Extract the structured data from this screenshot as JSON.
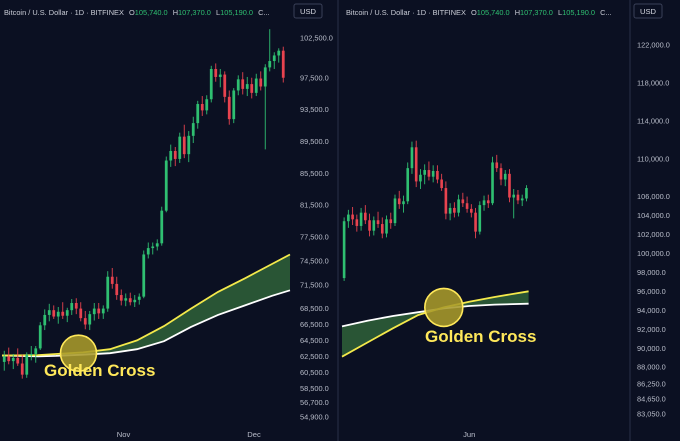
{
  "colors": {
    "background": "#0b1022",
    "up": "#2fbf71",
    "down": "#e8434f",
    "ma_fast": "#f4e94b",
    "ma_slow": "#ffffff",
    "cloud": "#2b5a37",
    "cross_marker": "#a89a2a",
    "annotation": "#ffe85a"
  },
  "chart_data": [
    {
      "type": "candlestick",
      "title": "Bitcoin / U.S. Dollar · 1D · BITFINEX",
      "ohlc_label": {
        "o_prefix": "O",
        "o": "105,740.0",
        "h_prefix": "H",
        "h": "107,370.0",
        "l_prefix": "L",
        "l": "105,190.0",
        "c_prefix": "C..."
      },
      "currency": "USD",
      "ylim": [
        54000,
        104000
      ],
      "yticks": [
        102500,
        97500,
        93500,
        89500,
        85500,
        81500,
        77500,
        74500,
        71500,
        68500,
        66500,
        64500,
        62500,
        60500,
        58500,
        56700,
        54900
      ],
      "ytick_labels": [
        "102,500.0",
        "97,500.0",
        "93,500.0",
        "89,500.0",
        "85,500.0",
        "81,500.0",
        "77,500.0",
        "74,500.0",
        "71,500.0",
        "68,500.0",
        "66,500.0",
        "64,500.0",
        "62,500.0",
        "60,500.0",
        "58,500.0",
        "56,700.0",
        "54,900.0"
      ],
      "x_range": [
        0,
        64
      ],
      "x_ticks": [
        {
          "i": 27,
          "label": "Nov"
        },
        {
          "i": 56,
          "label": "Dec"
        }
      ],
      "candles": [
        {
          "o": 61800,
          "h": 63200,
          "l": 60700,
          "c": 62500
        },
        {
          "o": 62500,
          "h": 63600,
          "l": 61500,
          "c": 61900
        },
        {
          "o": 61900,
          "h": 62800,
          "l": 60900,
          "c": 62300
        },
        {
          "o": 62300,
          "h": 63500,
          "l": 61300,
          "c": 61600
        },
        {
          "o": 61600,
          "h": 62700,
          "l": 59700,
          "c": 60200
        },
        {
          "o": 60200,
          "h": 63000,
          "l": 59800,
          "c": 62700
        },
        {
          "o": 62700,
          "h": 63800,
          "l": 62000,
          "c": 62800
        },
        {
          "o": 62800,
          "h": 63800,
          "l": 61700,
          "c": 63500
        },
        {
          "o": 63500,
          "h": 66800,
          "l": 63300,
          "c": 66400
        },
        {
          "o": 66400,
          "h": 68400,
          "l": 65800,
          "c": 67700
        },
        {
          "o": 67700,
          "h": 69100,
          "l": 66900,
          "c": 68300
        },
        {
          "o": 68300,
          "h": 68900,
          "l": 67200,
          "c": 67500
        },
        {
          "o": 67500,
          "h": 68700,
          "l": 66600,
          "c": 68100
        },
        {
          "o": 68100,
          "h": 69300,
          "l": 67200,
          "c": 67600
        },
        {
          "o": 67600,
          "h": 68600,
          "l": 66800,
          "c": 68300
        },
        {
          "o": 68300,
          "h": 69700,
          "l": 67700,
          "c": 69200
        },
        {
          "o": 69200,
          "h": 69800,
          "l": 67800,
          "c": 68500
        },
        {
          "o": 68500,
          "h": 69300,
          "l": 66900,
          "c": 67300
        },
        {
          "o": 67300,
          "h": 68200,
          "l": 65900,
          "c": 66500
        },
        {
          "o": 66500,
          "h": 68200,
          "l": 65800,
          "c": 67800
        },
        {
          "o": 67800,
          "h": 69200,
          "l": 67000,
          "c": 68500
        },
        {
          "o": 68500,
          "h": 69200,
          "l": 67200,
          "c": 67900
        },
        {
          "o": 67900,
          "h": 68900,
          "l": 67200,
          "c": 68500
        },
        {
          "o": 68500,
          "h": 73200,
          "l": 68100,
          "c": 72500
        },
        {
          "o": 72500,
          "h": 73600,
          "l": 71000,
          "c": 71600
        },
        {
          "o": 71600,
          "h": 72500,
          "l": 69600,
          "c": 70200
        },
        {
          "o": 70200,
          "h": 70900,
          "l": 68900,
          "c": 69500
        },
        {
          "o": 69500,
          "h": 70400,
          "l": 68800,
          "c": 69800
        },
        {
          "o": 69800,
          "h": 70500,
          "l": 68900,
          "c": 69300
        },
        {
          "o": 69300,
          "h": 70200,
          "l": 68700,
          "c": 69600
        },
        {
          "o": 69600,
          "h": 70400,
          "l": 69000,
          "c": 70000
        },
        {
          "o": 70000,
          "h": 75800,
          "l": 69800,
          "c": 75300
        },
        {
          "o": 75300,
          "h": 76800,
          "l": 74800,
          "c": 76100
        },
        {
          "o": 76100,
          "h": 76800,
          "l": 75300,
          "c": 76300
        },
        {
          "o": 76300,
          "h": 77200,
          "l": 75800,
          "c": 76700
        },
        {
          "o": 76700,
          "h": 81300,
          "l": 76400,
          "c": 80800
        },
        {
          "o": 80800,
          "h": 87600,
          "l": 80600,
          "c": 87100
        },
        {
          "o": 87100,
          "h": 89100,
          "l": 86300,
          "c": 88300
        },
        {
          "o": 88300,
          "h": 88800,
          "l": 86400,
          "c": 87300
        },
        {
          "o": 87300,
          "h": 90600,
          "l": 86800,
          "c": 90100
        },
        {
          "o": 90100,
          "h": 91600,
          "l": 87400,
          "c": 87900
        },
        {
          "o": 87900,
          "h": 90800,
          "l": 86900,
          "c": 90200
        },
        {
          "o": 90200,
          "h": 92600,
          "l": 89300,
          "c": 91800
        },
        {
          "o": 91800,
          "h": 94600,
          "l": 91100,
          "c": 94200
        },
        {
          "o": 94200,
          "h": 95200,
          "l": 92700,
          "c": 93400
        },
        {
          "o": 93400,
          "h": 95300,
          "l": 92900,
          "c": 94800
        },
        {
          "o": 94800,
          "h": 99000,
          "l": 94400,
          "c": 98600
        },
        {
          "o": 98600,
          "h": 99300,
          "l": 97000,
          "c": 97600
        },
        {
          "o": 97600,
          "h": 98600,
          "l": 96300,
          "c": 97900
        },
        {
          "o": 97900,
          "h": 98300,
          "l": 94400,
          "c": 95100
        },
        {
          "o": 95100,
          "h": 95900,
          "l": 91600,
          "c": 92300
        },
        {
          "o": 92300,
          "h": 96200,
          "l": 91800,
          "c": 95900
        },
        {
          "o": 95900,
          "h": 97800,
          "l": 95300,
          "c": 97300
        },
        {
          "o": 97300,
          "h": 98200,
          "l": 95400,
          "c": 96100
        },
        {
          "o": 96100,
          "h": 97600,
          "l": 95200,
          "c": 96700
        },
        {
          "o": 96700,
          "h": 97500,
          "l": 94900,
          "c": 95600
        },
        {
          "o": 95600,
          "h": 98000,
          "l": 95200,
          "c": 97400
        },
        {
          "o": 97400,
          "h": 98300,
          "l": 95900,
          "c": 96400
        },
        {
          "o": 96400,
          "h": 99200,
          "l": 88500,
          "c": 98800
        },
        {
          "o": 98800,
          "h": 103600,
          "l": 98300,
          "c": 99600
        },
        {
          "o": 99600,
          "h": 100700,
          "l": 98600,
          "c": 100300
        },
        {
          "o": 100300,
          "h": 101200,
          "l": 99400,
          "c": 100900
        },
        {
          "o": 100900,
          "h": 101400,
          "l": 96900,
          "c": 97500
        }
      ],
      "ma_fast": {
        "x": [
          0,
          8,
          12,
          18,
          24,
          30,
          36,
          42,
          48,
          54,
          60,
          64
        ],
        "y": [
          62600,
          62650,
          62800,
          63000,
          63400,
          64500,
          66300,
          68500,
          70600,
          72300,
          74100,
          75300
        ]
      },
      "ma_slow": {
        "x": [
          0,
          8,
          12,
          18,
          24,
          30,
          36,
          42,
          48,
          54,
          60,
          64
        ],
        "y": [
          62600,
          62500,
          62550,
          62700,
          62900,
          63400,
          64400,
          66200,
          67700,
          68900,
          70100,
          70800
        ]
      },
      "cross": {
        "x": 17,
        "y": 62900
      },
      "annotation": "Golden Cross"
    },
    {
      "type": "candlestick",
      "title": "Bitcoin / U.S. Dollar · 1D · BITFINEX",
      "ohlc_label": {
        "o_prefix": "O",
        "o": "105,740.0",
        "h_prefix": "H",
        "h": "107,370.0",
        "l_prefix": "L",
        "l": "105,190.0",
        "c_prefix": "C..."
      },
      "currency": "USD",
      "ylim": [
        82000,
        124000
      ],
      "yticks": [
        122000,
        118000,
        114000,
        110000,
        106000,
        104000,
        102000,
        100000,
        98000,
        96000,
        94000,
        92000,
        90000,
        88000,
        86250,
        84650,
        83050
      ],
      "ytick_labels": [
        "122,000.0",
        "118,000.0",
        "114,000.0",
        "110,000.0",
        "106,000.0",
        "104,000.0",
        "102,000.0",
        "100,000.0",
        "98,000.0",
        "96,000.0",
        "94,000.0",
        "92,000.0",
        "90,000.0",
        "88,000.0",
        "86,250.0",
        "84,650.0",
        "83,050.0"
      ],
      "x_range": [
        0,
        50
      ],
      "x_ticks": [
        {
          "i": 30,
          "label": "Jun"
        }
      ],
      "candles": [
        {
          "o": 97400,
          "h": 103800,
          "l": 97100,
          "c": 103400
        },
        {
          "o": 103400,
          "h": 104600,
          "l": 102700,
          "c": 104100
        },
        {
          "o": 104100,
          "h": 104900,
          "l": 103000,
          "c": 103600
        },
        {
          "o": 103600,
          "h": 104100,
          "l": 102300,
          "c": 102900
        },
        {
          "o": 102900,
          "h": 104800,
          "l": 102400,
          "c": 104300
        },
        {
          "o": 104300,
          "h": 105100,
          "l": 103100,
          "c": 103500
        },
        {
          "o": 103500,
          "h": 104200,
          "l": 101800,
          "c": 102400
        },
        {
          "o": 102400,
          "h": 103900,
          "l": 101900,
          "c": 103500
        },
        {
          "o": 103500,
          "h": 104400,
          "l": 102700,
          "c": 103100
        },
        {
          "o": 103100,
          "h": 103800,
          "l": 101600,
          "c": 102100
        },
        {
          "o": 102100,
          "h": 104000,
          "l": 101700,
          "c": 103600
        },
        {
          "o": 103600,
          "h": 104300,
          "l": 102600,
          "c": 103200
        },
        {
          "o": 103200,
          "h": 106200,
          "l": 102900,
          "c": 105800
        },
        {
          "o": 105800,
          "h": 106600,
          "l": 104700,
          "c": 105200
        },
        {
          "o": 105200,
          "h": 106100,
          "l": 104300,
          "c": 105500
        },
        {
          "o": 105500,
          "h": 109600,
          "l": 105200,
          "c": 109000
        },
        {
          "o": 109000,
          "h": 111800,
          "l": 108400,
          "c": 111200
        },
        {
          "o": 111200,
          "h": 111900,
          "l": 107000,
          "c": 107600
        },
        {
          "o": 107600,
          "h": 108900,
          "l": 106800,
          "c": 108300
        },
        {
          "o": 108300,
          "h": 109400,
          "l": 107300,
          "c": 108800
        },
        {
          "o": 108800,
          "h": 109700,
          "l": 107700,
          "c": 108100
        },
        {
          "o": 108100,
          "h": 109300,
          "l": 107500,
          "c": 108700
        },
        {
          "o": 108700,
          "h": 109300,
          "l": 107400,
          "c": 107800
        },
        {
          "o": 107800,
          "h": 108400,
          "l": 106600,
          "c": 106900
        },
        {
          "o": 106900,
          "h": 107600,
          "l": 103600,
          "c": 104200
        },
        {
          "o": 104200,
          "h": 105300,
          "l": 103500,
          "c": 104800
        },
        {
          "o": 104800,
          "h": 105400,
          "l": 103800,
          "c": 104300
        },
        {
          "o": 104300,
          "h": 106200,
          "l": 103900,
          "c": 105700
        },
        {
          "o": 105700,
          "h": 106400,
          "l": 104900,
          "c": 105300
        },
        {
          "o": 105300,
          "h": 106000,
          "l": 104300,
          "c": 104700
        },
        {
          "o": 104700,
          "h": 105200,
          "l": 103800,
          "c": 104300
        },
        {
          "o": 104300,
          "h": 104800,
          "l": 101600,
          "c": 102300
        },
        {
          "o": 102300,
          "h": 105500,
          "l": 102000,
          "c": 105100
        },
        {
          "o": 105100,
          "h": 106100,
          "l": 104500,
          "c": 105600
        },
        {
          "o": 105600,
          "h": 106200,
          "l": 104800,
          "c": 105300
        },
        {
          "o": 105300,
          "h": 110200,
          "l": 105100,
          "c": 109600
        },
        {
          "o": 109600,
          "h": 110400,
          "l": 108600,
          "c": 109000
        },
        {
          "o": 109000,
          "h": 109500,
          "l": 107200,
          "c": 107800
        },
        {
          "o": 107800,
          "h": 108800,
          "l": 107100,
          "c": 108400
        },
        {
          "o": 108400,
          "h": 108900,
          "l": 105400,
          "c": 105900
        },
        {
          "o": 105900,
          "h": 106800,
          "l": 103700,
          "c": 106200
        },
        {
          "o": 106200,
          "h": 106700,
          "l": 105200,
          "c": 105600
        },
        {
          "o": 105600,
          "h": 106200,
          "l": 105000,
          "c": 105800
        },
        {
          "o": 105800,
          "h": 107200,
          "l": 105500,
          "c": 106900
        }
      ],
      "ma_fast": {
        "x": [
          0,
          6,
          12,
          18,
          24,
          30,
          36,
          44
        ],
        "y": [
          89100,
          90600,
          92100,
          93500,
          94300,
          94900,
          95400,
          96000
        ]
      },
      "ma_slow": {
        "x": [
          0,
          6,
          12,
          18,
          24,
          30,
          36,
          44
        ],
        "y": [
          92300,
          92900,
          93400,
          93800,
          94200,
          94450,
          94600,
          94700
        ]
      },
      "cross": {
        "x": 24,
        "y": 94300
      },
      "annotation": "Golden Cross"
    }
  ]
}
